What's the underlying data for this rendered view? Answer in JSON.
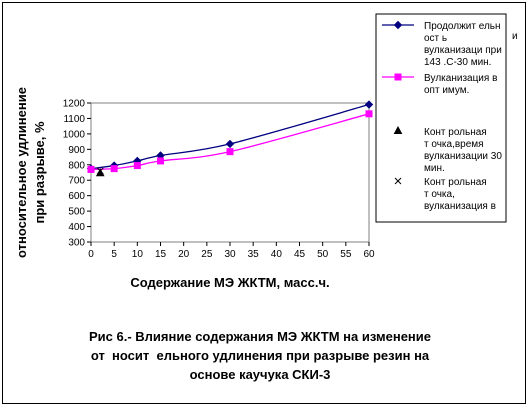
{
  "chart_data": {
    "type": "line",
    "title": "",
    "xlabel": "Содержание МЭ ЖКТМ, масс.ч.",
    "ylabel_lines": [
      "относительное удлинение",
      "при разрыве, %"
    ],
    "x_ticks": [
      0,
      5,
      10,
      15,
      20,
      25,
      30,
      35,
      40,
      45,
      50,
      55,
      60
    ],
    "y_ticks": [
      300,
      400,
      500,
      600,
      700,
      800,
      900,
      1000,
      1100,
      1200
    ],
    "xlim": [
      0,
      60
    ],
    "ylim": [
      300,
      1200
    ],
    "grid": false,
    "legend_position": "right",
    "series": [
      {
        "name_lines": [
          "Продолжит ельн",
          "ост ь",
          "вулканизаци при",
          "143 .С-30 мин."
        ],
        "marker": "diamond",
        "color": "#000080",
        "x": [
          0,
          5,
          10,
          15,
          30,
          60
        ],
        "y": [
          775,
          795,
          825,
          860,
          935,
          1190
        ]
      },
      {
        "name_lines": [
          "Вулканизация в",
          "опт имум."
        ],
        "marker": "square",
        "color": "#ff00ff",
        "x": [
          0,
          5,
          10,
          15,
          30,
          60
        ],
        "y": [
          770,
          775,
          795,
          825,
          885,
          1130
        ]
      },
      {
        "name_lines": [
          "Конт рольная",
          "т очка,время",
          "вулканизации 30",
          "мин."
        ],
        "marker": "triangle",
        "color": "#000000",
        "x": [
          2
        ],
        "y": [
          745
        ]
      },
      {
        "name_lines": [
          "Конт рольная",
          "т очка,",
          "вулканизация в"
        ],
        "marker": "x",
        "color": "#000000",
        "x": [
          2
        ],
        "y": [
          760
        ]
      }
    ]
  },
  "caption_lines": [
    "Рис 6.- Влияние содержания МЭ ЖКТМ на изменение",
    "от  носит  ельного удлинения при разрыве резин на",
    "основе каучука СКИ-3"
  ],
  "stray_char": "и"
}
